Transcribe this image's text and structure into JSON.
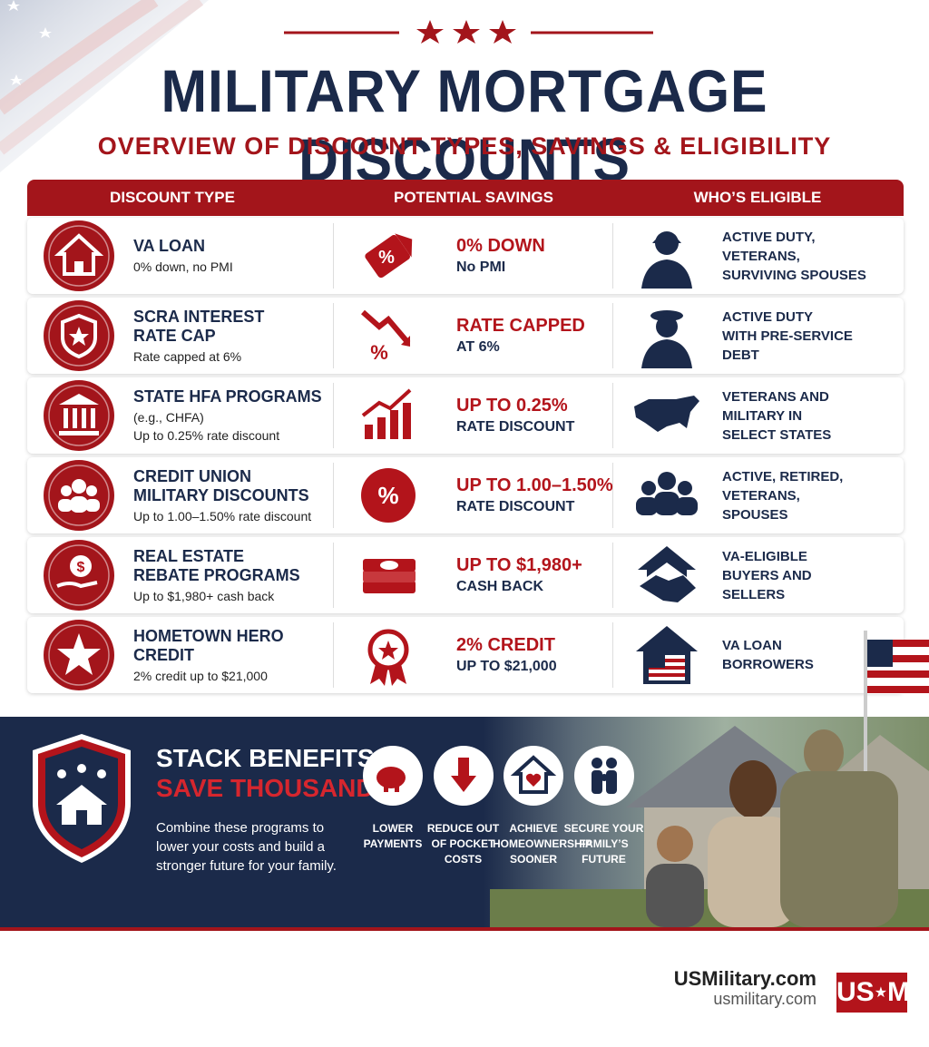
{
  "header": {
    "title": "MILITARY MORTGAGE DISCOUNTS",
    "subtitle": "OVERVIEW OF DISCOUNT TYPES, SAVINGS & ELIGIBILITY"
  },
  "table": {
    "columns": [
      "DISCOUNT TYPE",
      "POTENTIAL SAVINGS",
      "WHO’S ELIGIBLE"
    ],
    "rows": [
      {
        "name": [
          "VA LOAN"
        ],
        "detail": [
          "0% down, no PMI"
        ],
        "savings": [
          "0% DOWN",
          "No PMI"
        ],
        "eligible": [
          "ACTIVE DUTY,",
          "VETERANS,",
          "SURVIVING SPOUSES"
        ]
      },
      {
        "name": [
          "SCRA INTEREST",
          "RATE CAP"
        ],
        "detail": [
          "Rate capped at 6%"
        ],
        "savings": [
          "RATE CAPPED",
          "AT 6%"
        ],
        "eligible": [
          "ACTIVE DUTY",
          "WITH PRE-SERVICE",
          "DEBT"
        ]
      },
      {
        "name": [
          "STATE HFA PROGRAMS"
        ],
        "detail": [
          "(e.g., CHFA)",
          "Up to 0.25% rate discount"
        ],
        "savings": [
          "UP TO 0.25%",
          "RATE DISCOUNT"
        ],
        "eligible": [
          "VETERANS AND",
          "MILITARY IN",
          "SELECT STATES"
        ]
      },
      {
        "name": [
          "CREDIT UNION",
          "MILITARY DISCOUNTS"
        ],
        "detail": [
          "Up to 1.00–1.50% rate discount"
        ],
        "savings": [
          "UP TO 1.00–1.50%",
          "RATE DISCOUNT"
        ],
        "eligible": [
          "ACTIVE, RETIRED,",
          "VETERANS,",
          "SPOUSES"
        ]
      },
      {
        "name": [
          "REAL ESTATE",
          "REBATE PROGRAMS"
        ],
        "detail": [
          "Up to $1,980+ cash back"
        ],
        "savings": [
          "UP TO $1,980+",
          "CASH BACK"
        ],
        "eligible": [
          "VA-ELIGIBLE",
          "BUYERS AND",
          "SELLERS"
        ]
      },
      {
        "name": [
          "HOMETOWN HERO",
          "CREDIT"
        ],
        "detail": [
          "2% credit up to $21,000"
        ],
        "savings": [
          "2% CREDIT",
          "UP TO $21,000"
        ],
        "eligible": [
          "VA LOAN",
          "BORROWERS"
        ]
      }
    ]
  },
  "banner": {
    "headline": [
      "STACK BENEFITS.",
      "SAVE THOUSANDS."
    ],
    "description": [
      "Combine these programs to",
      "lower your costs and build a",
      "stronger future for your family."
    ],
    "benefits": [
      [
        "LOWER",
        "PAYMENTS"
      ],
      [
        "REDUCE OUT",
        "OF POCKET",
        "COSTS"
      ],
      [
        "ACHIEVE",
        "HOMEOWNERSHIP",
        "SOONER"
      ],
      [
        "SECURE YOUR",
        "FAMILY’S",
        "FUTURE"
      ]
    ]
  },
  "footer": {
    "site": "USMilitary.com",
    "url": "usmilitary.com",
    "logo": [
      "US",
      "M"
    ]
  }
}
